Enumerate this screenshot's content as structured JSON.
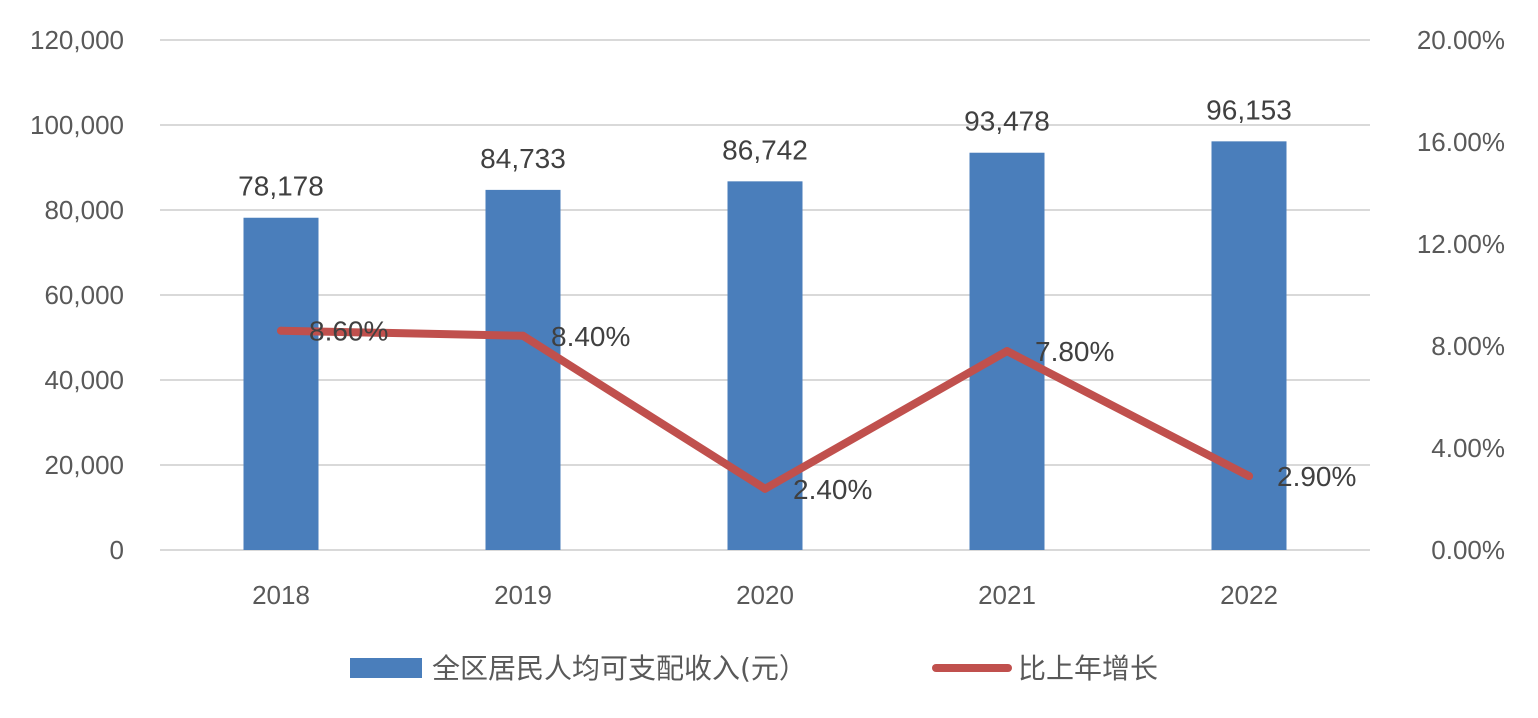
{
  "chart_data": {
    "type": "bar",
    "title": "",
    "categories": [
      "2018",
      "2019",
      "2020",
      "2021",
      "2022"
    ],
    "series": [
      {
        "name": "全区居民人均可支配收入(元）",
        "type": "bar",
        "axis": "left",
        "values": [
          78178,
          84733,
          86742,
          93478,
          96153
        ],
        "value_labels": [
          "78,178",
          "84,733",
          "86,742",
          "93,478",
          "96,153"
        ],
        "color": "#4a7ebb"
      },
      {
        "name": "比上年增长",
        "type": "line",
        "axis": "right",
        "values": [
          8.6,
          8.4,
          2.4,
          7.8,
          2.9
        ],
        "value_labels": [
          "8.60%",
          "8.40%",
          "2.40%",
          "7.80%",
          "2.90%"
        ],
        "color": "#c0504d"
      }
    ],
    "y_left": {
      "ylim": [
        0,
        120000
      ],
      "tick_labels": [
        "0",
        "20,000",
        "40,000",
        "60,000",
        "80,000",
        "100,000",
        "120,000"
      ]
    },
    "y_right": {
      "ylim": [
        0,
        20
      ],
      "tick_labels": [
        "0.00%",
        "4.00%",
        "8.00%",
        "12.00%",
        "16.00%",
        "20.00%"
      ]
    },
    "grid": true,
    "legend_position": "bottom-center",
    "colors": {
      "bar": "#4a7ebb",
      "line": "#c0504d",
      "grid": "#d9d9d9"
    }
  }
}
